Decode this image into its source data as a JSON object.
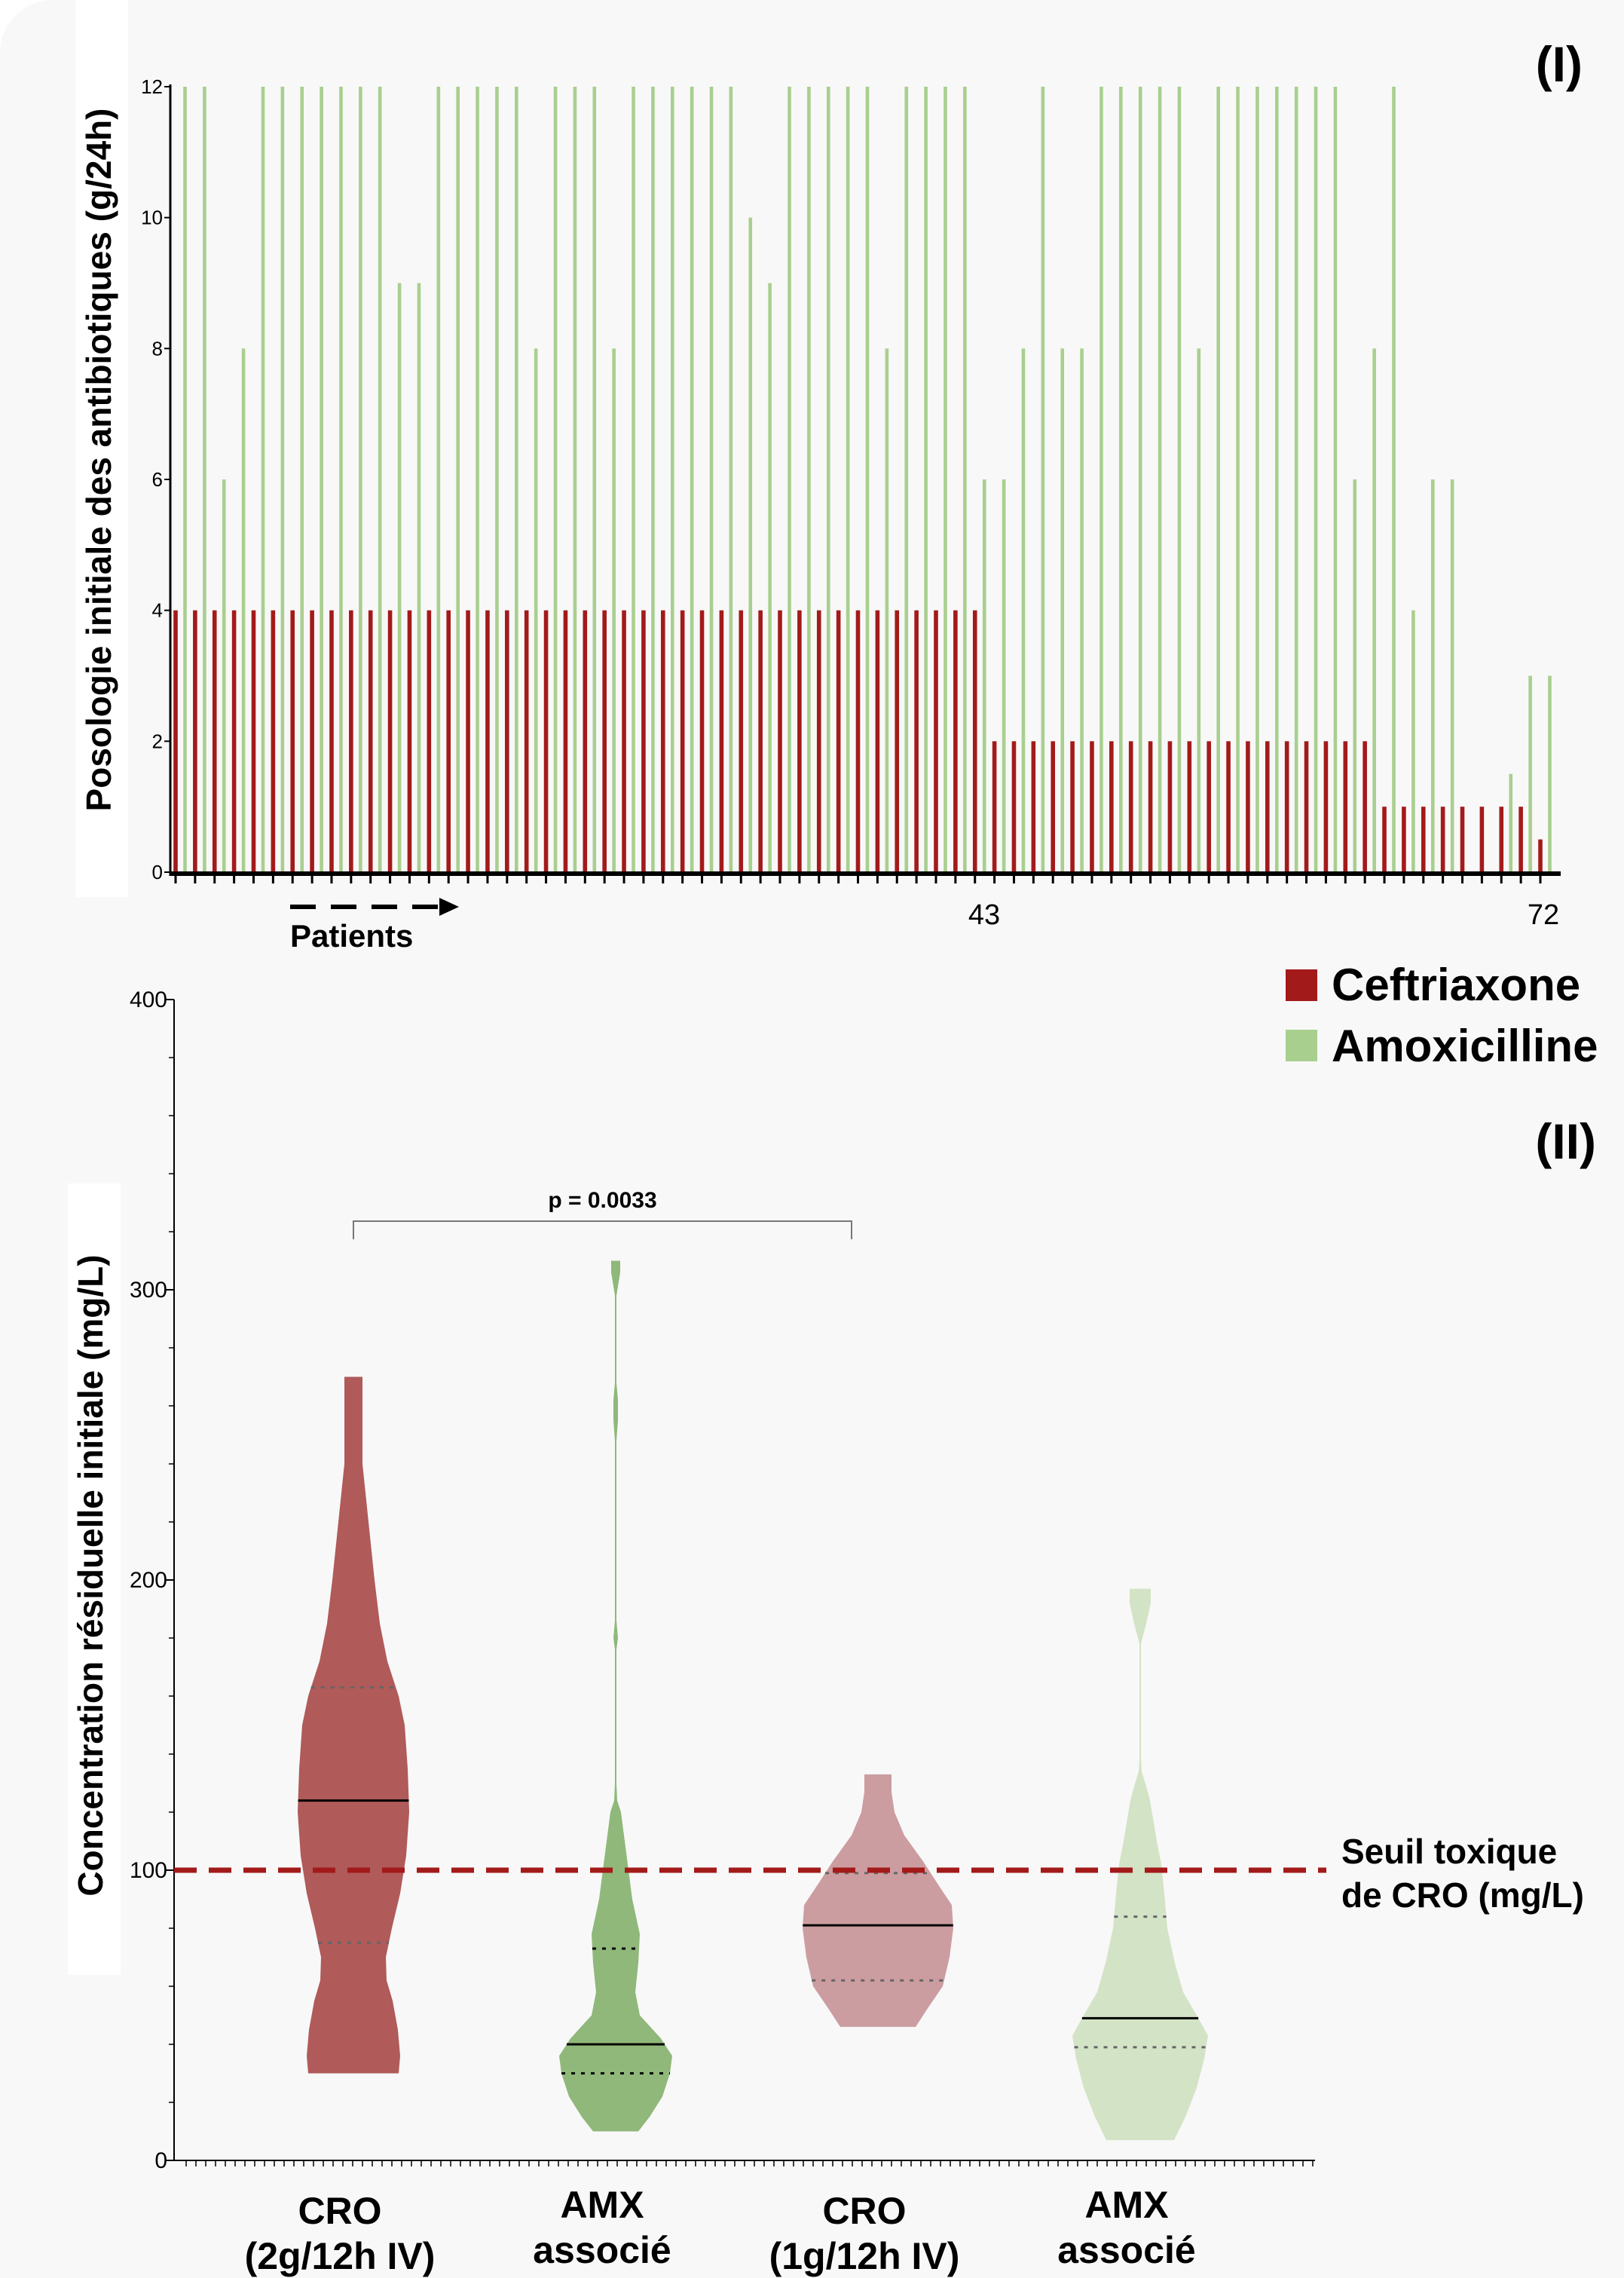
{
  "chart_data": [
    {
      "type": "bar",
      "panel_label": "(I)",
      "ylabel": "Posologie initiale des antibiotiques (g/24h)",
      "ylim": [
        0,
        12
      ],
      "yticks": [
        "0",
        "2",
        "4",
        "6",
        "8",
        "10",
        "12"
      ],
      "x_axis_text": "Patients",
      "x_tick_labels": [
        "43",
        "72"
      ],
      "grid": false,
      "series": [
        {
          "name": "Ceftriaxone",
          "color": "#a31a1a",
          "values": [
            4,
            4,
            4,
            4,
            4,
            4,
            4,
            4,
            4,
            4,
            4,
            4,
            4,
            4,
            4,
            4,
            4,
            4,
            4,
            4,
            4,
            4,
            4,
            4,
            4,
            4,
            4,
            4,
            4,
            4,
            4,
            4,
            4,
            4,
            4,
            4,
            4,
            4,
            4,
            4,
            4,
            4,
            2,
            2,
            2,
            2,
            2,
            2,
            2,
            2,
            2,
            2,
            2,
            2,
            2,
            2,
            2,
            2,
            2,
            2,
            2,
            2,
            1,
            1,
            1,
            1,
            1,
            1,
            1,
            1,
            0.5
          ]
        },
        {
          "name": "Amoxicilline",
          "color": "#a9cf8f",
          "values": [
            12,
            12,
            6,
            8,
            12,
            12,
            12,
            12,
            12,
            12,
            12,
            9,
            9,
            12,
            12,
            12,
            12,
            12,
            8,
            12,
            12,
            12,
            8,
            12,
            12,
            12,
            12,
            12,
            12,
            10,
            9,
            12,
            12,
            12,
            12,
            12,
            8,
            12,
            12,
            12,
            12,
            6,
            6,
            8,
            12,
            8,
            8,
            12,
            12,
            12,
            12,
            12,
            8,
            12,
            12,
            12,
            12,
            12,
            12,
            12,
            6,
            8,
            12,
            4,
            6,
            6,
            0,
            0,
            1.5,
            3,
            3
          ]
        }
      ]
    },
    {
      "type": "violin",
      "panel_label": "(II)",
      "ylabel": "Concentration résiduelle initiale (mg/L)",
      "ylim": [
        0,
        400
      ],
      "yticks": [
        "0",
        "100",
        "200",
        "300",
        "400"
      ],
      "grid": false,
      "groups": [
        {
          "label_line1": "CRO",
          "label_line2": "(2g/12h IV)",
          "color": "#b05a5a",
          "min": 30,
          "max": 270,
          "median": 124,
          "q1": 75,
          "q3": 163
        },
        {
          "label_line1": "AMX",
          "label_line2": "associé",
          "color": "#8fb87a",
          "min": 10,
          "max": 310,
          "median": 40,
          "q1": 30,
          "q3": 73
        },
        {
          "label_line1": "CRO",
          "label_line2": "(1g/12h IV)",
          "color": "#cc9da0",
          "min": 46,
          "max": 133,
          "median": 81,
          "q1": 62,
          "q3": 99
        },
        {
          "label_line1": "AMX",
          "label_line2": "associé",
          "color": "#d3e3c6",
          "min": 7,
          "max": 197,
          "median": 49,
          "q1": 39,
          "q3": 84
        }
      ],
      "significance": {
        "text": "p = 0.0033",
        "from_group": 1,
        "to_group": 3
      },
      "threshold": {
        "value": 100,
        "color": "#a31a1a",
        "label_line1": "Seuil toxique",
        "label_line2": "de CRO (mg/L)"
      }
    }
  ],
  "legend": [
    {
      "label": "Ceftriaxone",
      "color": "#a31a1a"
    },
    {
      "label": "Amoxicilline",
      "color": "#a9cf8f"
    }
  ]
}
